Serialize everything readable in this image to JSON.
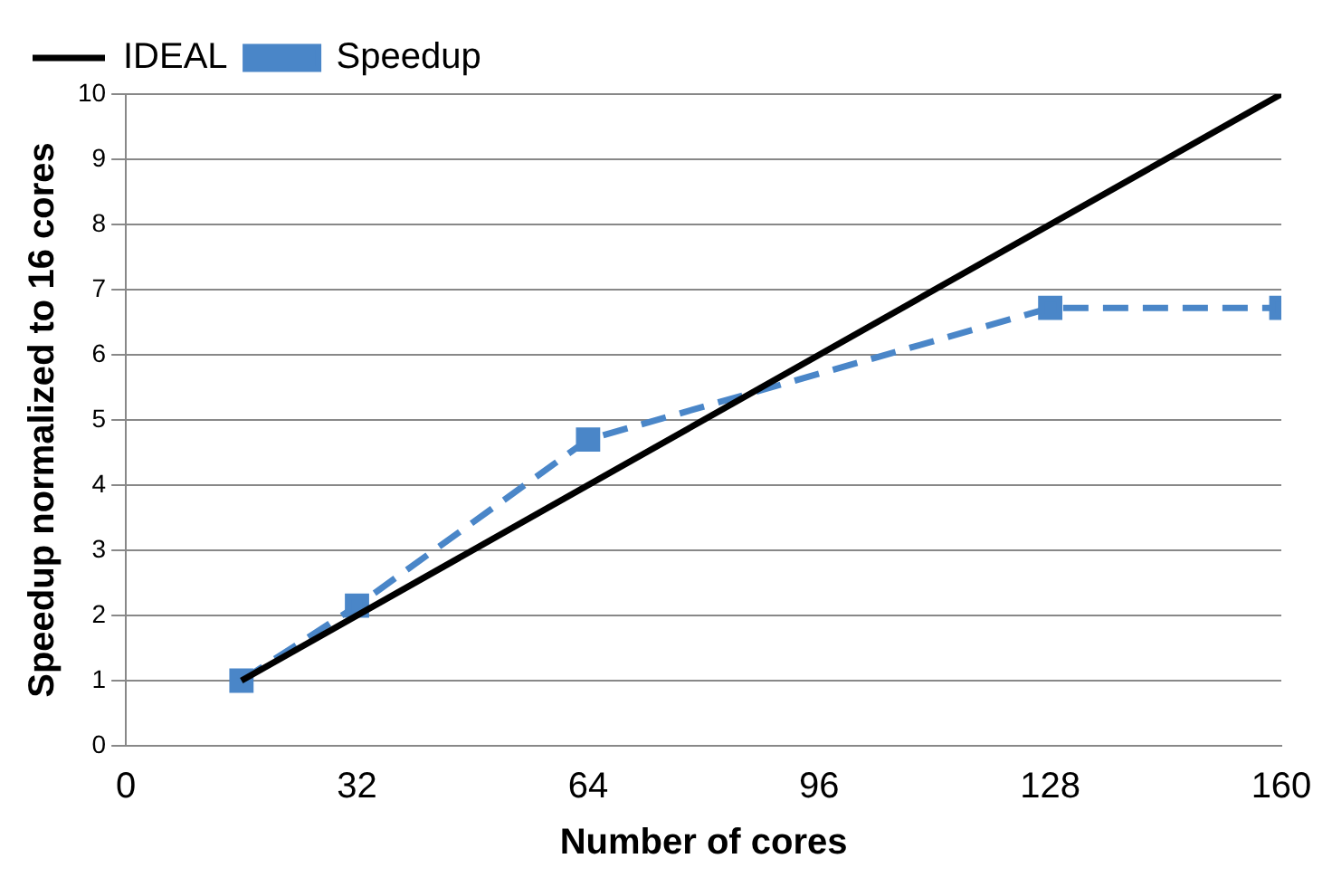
{
  "chart_data": {
    "type": "line",
    "xlabel": "Number of cores",
    "ylabel": "Speedup normalized to 16 cores",
    "xlim": [
      0,
      160
    ],
    "xticks": [
      0,
      32,
      64,
      96,
      128,
      160
    ],
    "ylim": [
      0,
      10
    ],
    "yticks": [
      0,
      1,
      2,
      3,
      4,
      5,
      6,
      7,
      8,
      9,
      10
    ],
    "grid": "y",
    "legend": "top left",
    "series": [
      {
        "name": "IDEAL",
        "color": "#000000",
        "x": [
          16,
          160
        ],
        "values": [
          1,
          10
        ],
        "marker": "none",
        "line_style": "solid"
      },
      {
        "name": "Speedup",
        "color": "#4a86c8",
        "x": [
          16,
          32,
          64,
          128,
          160
        ],
        "values": [
          1,
          2.15,
          4.7,
          6.72,
          6.72
        ],
        "marker": "square",
        "line_style": "dashed"
      }
    ]
  }
}
